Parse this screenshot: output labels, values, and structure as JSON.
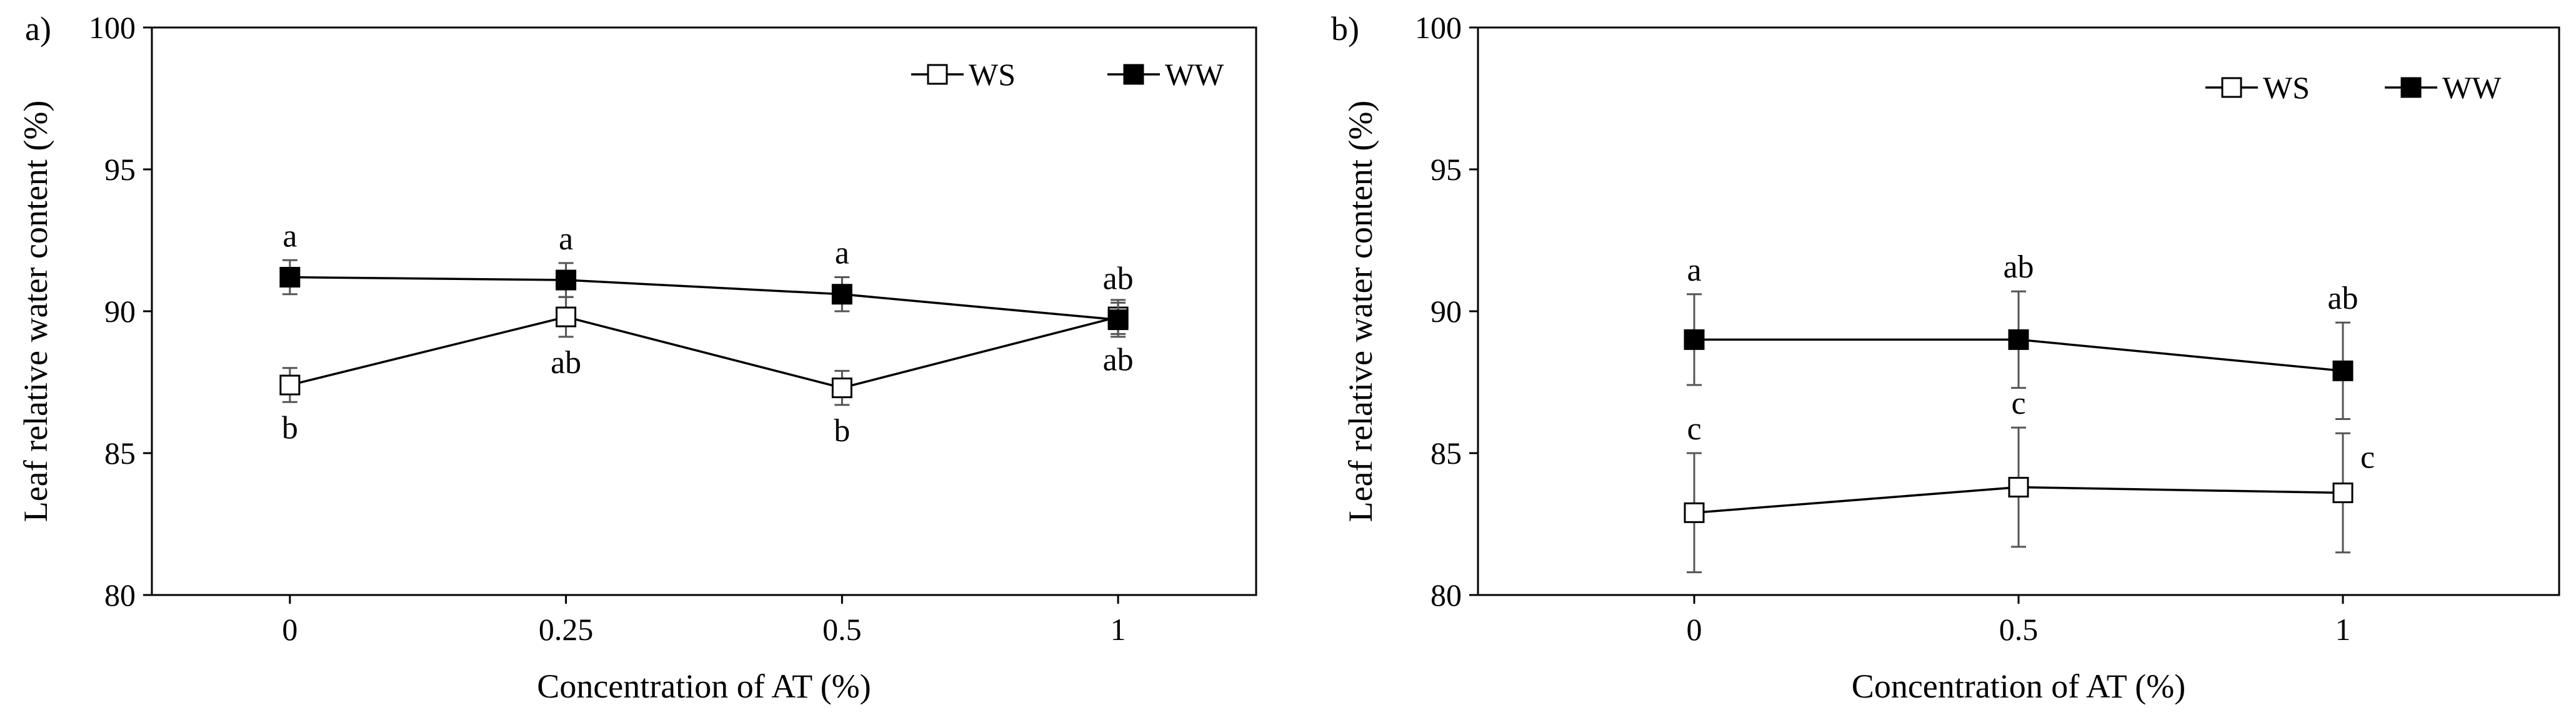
{
  "chart_data": [
    {
      "type": "line",
      "panel_label": "a)",
      "xlabel": "Concentration of AT (%)",
      "ylabel": "Leaf relative water content (%)",
      "categories": [
        "0",
        "0.25",
        "0.5",
        "1"
      ],
      "ylim": [
        80,
        100
      ],
      "yticks": [
        80,
        85,
        90,
        95,
        100
      ],
      "grid": false,
      "legend_position": "top-right",
      "series": [
        {
          "name": "WS",
          "marker": "open-square",
          "values": [
            87.4,
            89.8,
            87.3,
            89.8
          ],
          "errors": [
            0.6,
            0.7,
            0.6,
            0.6
          ],
          "labels": [
            "b",
            "ab",
            "b",
            "ab"
          ],
          "label_positions": [
            "below",
            "below",
            "below",
            "below"
          ]
        },
        {
          "name": "WW",
          "marker": "filled-square",
          "values": [
            91.2,
            91.1,
            90.6,
            89.7
          ],
          "errors": [
            0.6,
            0.6,
            0.6,
            0.6
          ],
          "labels": [
            "a",
            "a",
            "a",
            "ab"
          ],
          "label_positions": [
            "above",
            "above",
            "above",
            "above"
          ]
        }
      ]
    },
    {
      "type": "line",
      "panel_label": "b)",
      "xlabel": "Concentration of AT (%)",
      "ylabel": "Leaf relative water content (%)",
      "categories": [
        "0",
        "0.5",
        "1"
      ],
      "ylim": [
        80,
        100
      ],
      "yticks": [
        80,
        85,
        90,
        95,
        100
      ],
      "grid": false,
      "legend_position": "top-right",
      "series": [
        {
          "name": "WS",
          "marker": "open-square",
          "values": [
            82.9,
            83.8,
            83.6
          ],
          "errors": [
            2.1,
            2.1,
            2.1
          ],
          "labels": [
            "c",
            "c",
            "c"
          ],
          "label_positions": [
            "above",
            "above",
            "right"
          ]
        },
        {
          "name": "WW",
          "marker": "filled-square",
          "values": [
            89.0,
            89.0,
            87.9
          ],
          "errors": [
            1.6,
            1.7,
            1.7
          ],
          "labels": [
            "a",
            "ab",
            "ab"
          ],
          "label_positions": [
            "above",
            "above",
            "above"
          ]
        }
      ]
    }
  ]
}
